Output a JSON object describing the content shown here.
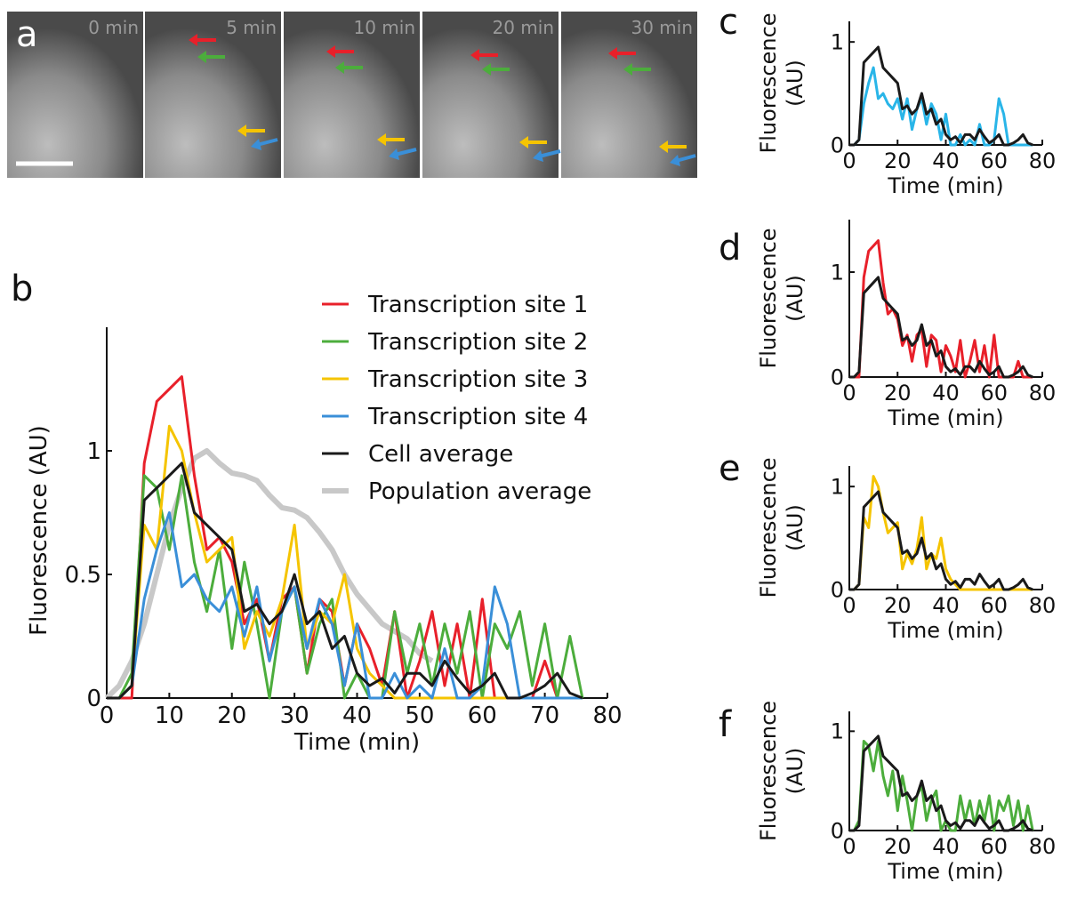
{
  "image_panel": {
    "label": "a",
    "frames": [
      "0 min",
      "5 min",
      "10 min",
      "20 min",
      "30 min"
    ]
  },
  "chart_data": [
    {
      "type": "line",
      "label": "b",
      "xlabel": "Time (min)",
      "ylabel": "Fluorescence (AU)",
      "legend": "upper right",
      "xlim": [
        0,
        80
      ],
      "ylim": [
        0,
        1.5
      ],
      "xticks": [
        0,
        10,
        20,
        30,
        40,
        50,
        60,
        70,
        80
      ],
      "yticks": [
        0,
        0.5,
        1
      ],
      "x": [
        0,
        2,
        4,
        6,
        8,
        10,
        12,
        14,
        16,
        18,
        20,
        22,
        24,
        26,
        28,
        30,
        32,
        34,
        36,
        38,
        40,
        42,
        44,
        46,
        48,
        50,
        52,
        54,
        56,
        58,
        60,
        62,
        64,
        66,
        68,
        70,
        72,
        74,
        76
      ],
      "series": [
        {
          "name": "Transcription site 1",
          "color": "#e8202a",
          "values": [
            0,
            0,
            0,
            0.95,
            1.2,
            1.25,
            1.3,
            0.9,
            0.6,
            0.65,
            0.55,
            0.3,
            0.4,
            0.15,
            0.4,
            0.45,
            0.1,
            0.4,
            0.35,
            0.05,
            0.3,
            0.2,
            0.05,
            0.35,
            0,
            0.15,
            0.35,
            0.05,
            0.3,
            0,
            0.4,
            0,
            0,
            0,
            0,
            0.15,
            0,
            0,
            0
          ]
        },
        {
          "name": "Transcription site 2",
          "color": "#4cad3c",
          "values": [
            0,
            0,
            0.1,
            0.9,
            0.85,
            0.6,
            0.9,
            0.55,
            0.35,
            0.6,
            0.2,
            0.55,
            0.3,
            0,
            0.35,
            0.45,
            0.1,
            0.3,
            0.4,
            0,
            0.1,
            0,
            0,
            0.35,
            0.1,
            0.3,
            0.05,
            0.3,
            0.1,
            0.35,
            0,
            0.3,
            0.2,
            0.35,
            0.05,
            0.3,
            0,
            0.25,
            0
          ]
        },
        {
          "name": "Transcription site 3",
          "color": "#f5c400",
          "values": [
            0,
            0,
            0.05,
            0.7,
            0.6,
            1.1,
            1.0,
            0.75,
            0.55,
            0.6,
            0.65,
            0.2,
            0.35,
            0.25,
            0.4,
            0.7,
            0.2,
            0.35,
            0.3,
            0.5,
            0.2,
            0.1,
            0.05,
            0,
            0,
            0,
            0,
            0,
            0,
            0,
            0,
            0,
            0,
            0,
            0,
            0,
            0,
            0,
            0
          ]
        },
        {
          "name": "Transcription site 4",
          "color": "#3a8fd8",
          "values": [
            0,
            0,
            0.05,
            0.4,
            0.6,
            0.75,
            0.45,
            0.5,
            0.4,
            0.35,
            0.45,
            0.25,
            0.45,
            0.15,
            0.35,
            0.45,
            0.2,
            0.4,
            0.3,
            0.05,
            0.3,
            0,
            0,
            0.1,
            0,
            0.05,
            0,
            0.2,
            0,
            0,
            0.05,
            0.45,
            0.3,
            0,
            0,
            0,
            0,
            0,
            0
          ]
        },
        {
          "name": "Cell average",
          "color": "#1a1a1a",
          "values": [
            0,
            0,
            0.05,
            0.8,
            0.85,
            0.9,
            0.95,
            0.75,
            0.7,
            0.65,
            0.6,
            0.35,
            0.38,
            0.3,
            0.35,
            0.5,
            0.3,
            0.35,
            0.2,
            0.25,
            0.1,
            0.05,
            0.08,
            0.02,
            0.1,
            0.1,
            0.05,
            0.15,
            0.08,
            0.02,
            0.05,
            0.1,
            0,
            0,
            0.02,
            0.05,
            0.1,
            0.02,
            0
          ]
        },
        {
          "name": "Population average",
          "color": "#c8c8c8",
          "width": 6,
          "values": [
            0,
            0.05,
            0.15,
            0.3,
            0.5,
            0.7,
            0.85,
            0.97,
            1.0,
            0.95,
            0.91,
            0.9,
            0.88,
            0.82,
            0.77,
            0.76,
            0.73,
            0.67,
            0.6,
            0.5,
            0.42,
            0.36,
            0.3,
            0.27,
            0.24,
            0.18,
            0.15,
            null,
            null,
            null,
            null,
            null,
            null,
            null,
            null,
            null,
            null,
            null,
            null
          ]
        }
      ]
    },
    {
      "type": "line",
      "label": "c",
      "xlabel": "Time (min)",
      "ylabel": "Fluorescence (AU)",
      "xlim": [
        0,
        80
      ],
      "ylim": [
        0,
        1.2
      ],
      "xticks": [
        0,
        20,
        40,
        60,
        80
      ],
      "yticks": [
        0,
        1
      ],
      "x": [
        0,
        2,
        4,
        6,
        8,
        10,
        12,
        14,
        16,
        18,
        20,
        22,
        24,
        26,
        28,
        30,
        32,
        34,
        36,
        38,
        40,
        42,
        44,
        46,
        48,
        50,
        52,
        54,
        56,
        58,
        60,
        62,
        64,
        66,
        68,
        70,
        72,
        74,
        76
      ],
      "series": [
        {
          "color": "#29b5e8",
          "values": [
            0,
            0,
            0.05,
            0.4,
            0.6,
            0.75,
            0.45,
            0.5,
            0.4,
            0.35,
            0.45,
            0.25,
            0.45,
            0.15,
            0.35,
            0.45,
            0.2,
            0.4,
            0.3,
            0.05,
            0.3,
            0,
            0,
            0.1,
            0,
            0.05,
            0,
            0.2,
            0,
            0,
            0.05,
            0.45,
            0.3,
            0,
            0,
            0,
            0,
            0,
            0
          ]
        },
        {
          "color": "#1a1a1a",
          "values": [
            0,
            0,
            0.05,
            0.8,
            0.85,
            0.9,
            0.95,
            0.75,
            0.7,
            0.65,
            0.6,
            0.35,
            0.38,
            0.3,
            0.35,
            0.5,
            0.3,
            0.35,
            0.2,
            0.25,
            0.1,
            0.05,
            0.08,
            0.02,
            0.1,
            0.1,
            0.05,
            0.15,
            0.08,
            0.02,
            0.05,
            0.1,
            0,
            0,
            0.02,
            0.05,
            0.1,
            0.02,
            0
          ]
        }
      ]
    },
    {
      "type": "line",
      "label": "d",
      "xlabel": "Time (min)",
      "ylabel": "Fluorescence (AU)",
      "xlim": [
        0,
        80
      ],
      "ylim": [
        0,
        1.5
      ],
      "xticks": [
        0,
        20,
        40,
        60,
        80
      ],
      "yticks": [
        0,
        1
      ],
      "x": [
        0,
        2,
        4,
        6,
        8,
        10,
        12,
        14,
        16,
        18,
        20,
        22,
        24,
        26,
        28,
        30,
        32,
        34,
        36,
        38,
        40,
        42,
        44,
        46,
        48,
        50,
        52,
        54,
        56,
        58,
        60,
        62,
        64,
        66,
        68,
        70,
        72,
        74,
        76
      ],
      "series": [
        {
          "color": "#e8202a",
          "values": [
            0,
            0,
            0,
            0.95,
            1.2,
            1.25,
            1.3,
            0.9,
            0.6,
            0.65,
            0.55,
            0.3,
            0.4,
            0.15,
            0.4,
            0.45,
            0.1,
            0.4,
            0.35,
            0.05,
            0.3,
            0.2,
            0.05,
            0.35,
            0,
            0.15,
            0.35,
            0.05,
            0.3,
            0,
            0.4,
            0,
            0,
            0,
            0,
            0.15,
            0,
            0,
            0
          ]
        },
        {
          "color": "#1a1a1a",
          "values": [
            0,
            0,
            0.05,
            0.8,
            0.85,
            0.9,
            0.95,
            0.75,
            0.7,
            0.65,
            0.6,
            0.35,
            0.38,
            0.3,
            0.35,
            0.5,
            0.3,
            0.35,
            0.2,
            0.25,
            0.1,
            0.05,
            0.08,
            0.02,
            0.1,
            0.1,
            0.05,
            0.15,
            0.08,
            0.02,
            0.05,
            0.1,
            0,
            0,
            0.02,
            0.05,
            0.1,
            0.02,
            0
          ]
        }
      ]
    },
    {
      "type": "line",
      "label": "e",
      "xlabel": "Time (min)",
      "ylabel": "Fluorescence (AU)",
      "xlim": [
        0,
        80
      ],
      "ylim": [
        0,
        1.2
      ],
      "xticks": [
        0,
        20,
        40,
        60,
        80
      ],
      "yticks": [
        0,
        1
      ],
      "x": [
        0,
        2,
        4,
        6,
        8,
        10,
        12,
        14,
        16,
        18,
        20,
        22,
        24,
        26,
        28,
        30,
        32,
        34,
        36,
        38,
        40,
        42,
        44,
        46,
        48,
        50,
        52,
        54,
        56,
        58,
        60,
        62,
        64,
        66,
        68,
        70,
        72,
        74,
        76
      ],
      "series": [
        {
          "color": "#f5c400",
          "values": [
            0,
            0,
            0.05,
            0.7,
            0.6,
            1.1,
            1.0,
            0.75,
            0.55,
            0.6,
            0.65,
            0.2,
            0.35,
            0.25,
            0.4,
            0.7,
            0.2,
            0.35,
            0.3,
            0.5,
            0.2,
            0.1,
            0.05,
            0,
            0,
            0,
            0,
            0,
            0,
            0,
            0,
            0,
            0,
            0,
            0,
            0,
            0,
            0,
            0
          ]
        },
        {
          "color": "#1a1a1a",
          "values": [
            0,
            0,
            0.05,
            0.8,
            0.85,
            0.9,
            0.95,
            0.75,
            0.7,
            0.65,
            0.6,
            0.35,
            0.38,
            0.3,
            0.35,
            0.5,
            0.3,
            0.35,
            0.2,
            0.25,
            0.1,
            0.05,
            0.08,
            0.02,
            0.1,
            0.1,
            0.05,
            0.15,
            0.08,
            0.02,
            0.05,
            0.1,
            0,
            0,
            0.02,
            0.05,
            0.1,
            0.02,
            0
          ]
        }
      ]
    },
    {
      "type": "line",
      "label": "f",
      "xlabel": "Time (min)",
      "ylabel": "Fluorescence (AU)",
      "xlim": [
        0,
        80
      ],
      "ylim": [
        0,
        1.2
      ],
      "xticks": [
        0,
        20,
        40,
        60,
        80
      ],
      "yticks": [
        0,
        1
      ],
      "x": [
        0,
        2,
        4,
        6,
        8,
        10,
        12,
        14,
        16,
        18,
        20,
        22,
        24,
        26,
        28,
        30,
        32,
        34,
        36,
        38,
        40,
        42,
        44,
        46,
        48,
        50,
        52,
        54,
        56,
        58,
        60,
        62,
        64,
        66,
        68,
        70,
        72,
        74,
        76
      ],
      "series": [
        {
          "color": "#4cad3c",
          "values": [
            0,
            0,
            0.1,
            0.9,
            0.85,
            0.6,
            0.9,
            0.55,
            0.35,
            0.6,
            0.2,
            0.55,
            0.3,
            0,
            0.35,
            0.45,
            0.1,
            0.3,
            0.4,
            0,
            0.1,
            0,
            0,
            0.35,
            0.1,
            0.3,
            0.05,
            0.3,
            0.1,
            0.35,
            0,
            0.3,
            0.2,
            0.35,
            0.05,
            0.3,
            0,
            0.25,
            0
          ]
        },
        {
          "color": "#1a1a1a",
          "values": [
            0,
            0,
            0.05,
            0.8,
            0.85,
            0.9,
            0.95,
            0.75,
            0.7,
            0.65,
            0.6,
            0.35,
            0.38,
            0.3,
            0.35,
            0.5,
            0.3,
            0.35,
            0.2,
            0.25,
            0.1,
            0.05,
            0.08,
            0.02,
            0.1,
            0.1,
            0.05,
            0.15,
            0.08,
            0.02,
            0.05,
            0.1,
            0,
            0,
            0.02,
            0.05,
            0.1,
            0.02,
            0
          ]
        }
      ]
    }
  ]
}
